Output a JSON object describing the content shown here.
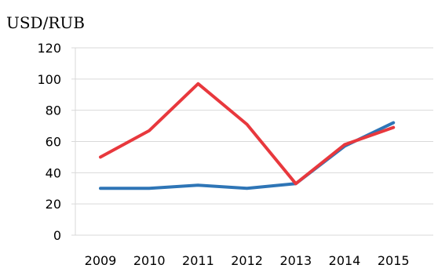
{
  "chart_data": {
    "type": "line",
    "title": "USD/RUB",
    "xlabel": "",
    "ylabel": "",
    "categories": [
      "2009",
      "2010",
      "2011",
      "2012",
      "2013",
      "2014",
      "2015"
    ],
    "y_ticks": [
      "0",
      "20",
      "40",
      "60",
      "80",
      "100",
      "120"
    ],
    "ylim": [
      0,
      120
    ],
    "grid": true,
    "legend": "none",
    "series": [
      {
        "color": "#2e75b6",
        "values": [
          30,
          30,
          32,
          30,
          33,
          57,
          72
        ]
      },
      {
        "color": "#e8383d",
        "values": [
          50,
          67,
          97,
          71,
          33,
          58,
          69
        ]
      }
    ]
  }
}
